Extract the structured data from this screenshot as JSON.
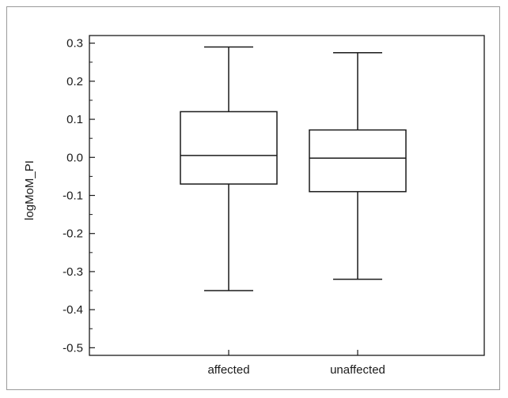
{
  "chart_data": {
    "type": "box",
    "ylabel": "logMoM_PI",
    "ylim": [
      -0.52,
      0.32
    ],
    "y_ticks": [
      "0.3",
      "0.2",
      "0.1",
      "0.0",
      "-0.1",
      "-0.2",
      "-0.3",
      "-0.4",
      "-0.5"
    ],
    "y_tick_values": [
      0.3,
      0.2,
      0.1,
      0.0,
      -0.1,
      -0.2,
      -0.3,
      -0.4,
      -0.5
    ],
    "categories": [
      "affected",
      "unaffected"
    ],
    "boxes": [
      {
        "category": "affected",
        "whisker_low": -0.35,
        "q1": -0.07,
        "median": 0.005,
        "q3": 0.12,
        "whisker_high": 0.29
      },
      {
        "category": "unaffected",
        "whisker_low": -0.32,
        "q1": -0.09,
        "median": -0.002,
        "q3": 0.072,
        "whisker_high": 0.275
      }
    ],
    "grid": false,
    "colors": {
      "stroke": "#1a1a1a",
      "box_fill": "#ffffff"
    }
  }
}
